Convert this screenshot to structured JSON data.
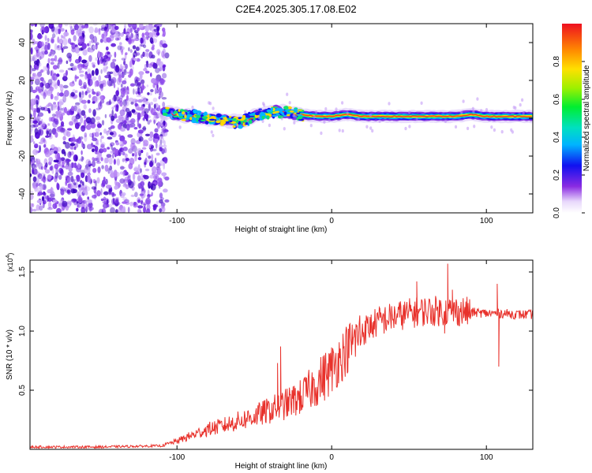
{
  "title": "C2E4.2025.305.17.08.E02",
  "colors": {
    "snr_line": "#e8312b",
    "axis": "#000000",
    "dots": "#7a33e6",
    "background": "#ffffff"
  },
  "chart_data": [
    {
      "type": "heatmap",
      "name": "spectrogram",
      "xlabel": "Height of straight line (km)",
      "ylabel": "Frequency (Hz)",
      "xlim": [
        -195,
        130
      ],
      "ylim": [
        -50,
        50
      ],
      "xticks": [
        -100,
        0,
        100
      ],
      "yticks": [
        -40,
        -20,
        0,
        20,
        40
      ],
      "noise_region_x": [
        -195,
        -108
      ],
      "signal_track": {
        "x": [
          -108,
          -100,
          -90,
          -80,
          -70,
          -60,
          -50,
          -40,
          -35,
          -30,
          -20,
          -10,
          0,
          10,
          20,
          40,
          60,
          80,
          90,
          100,
          110,
          130
        ],
        "freq": [
          3,
          2,
          1,
          0,
          -1,
          -2,
          1,
          3,
          4,
          3,
          2,
          1,
          1,
          2,
          1,
          1,
          1,
          1,
          2,
          1,
          1,
          1
        ]
      },
      "colorbar": {
        "label": "Normalized spectral amplitude",
        "range": [
          0,
          1
        ],
        "ticks": [
          "0.0",
          "0.2",
          "0.4",
          "0.6",
          "0.8"
        ],
        "tick_values": [
          0,
          0.2,
          0.4,
          0.6,
          0.8
        ]
      }
    },
    {
      "type": "line",
      "name": "snr",
      "xlabel": "Height of straight line (km)",
      "ylabel": "SNR (10 * v/v)",
      "scale_label_base": "(x10",
      "scale_label_exp": "4",
      "scale_label_end": ")",
      "xlim": [
        -195,
        130
      ],
      "ylim": [
        0,
        1.6
      ],
      "xticks": [
        -100,
        0,
        100
      ],
      "yticks": [
        0.5,
        1.0,
        1.5
      ],
      "ytick_labels": [
        "0.5",
        "1.0",
        "1.5"
      ],
      "x": [
        -195,
        -150,
        -110,
        -100,
        -90,
        -80,
        -70,
        -60,
        -50,
        -40,
        -30,
        -20,
        -10,
        0,
        10,
        20,
        30,
        40,
        50,
        60,
        70,
        80,
        90,
        100,
        110,
        120,
        130
      ],
      "y": [
        0.02,
        0.02,
        0.03,
        0.07,
        0.12,
        0.17,
        0.2,
        0.24,
        0.28,
        0.33,
        0.38,
        0.44,
        0.55,
        0.68,
        0.85,
        1.0,
        1.08,
        1.12,
        1.15,
        1.17,
        1.17,
        1.17,
        1.16,
        1.15,
        1.15,
        1.14,
        1.14
      ],
      "spikes": [
        {
          "x": -33,
          "y": 0.87
        },
        {
          "x": -35,
          "y": 0.73
        },
        {
          "x": 55,
          "y": 1.42
        },
        {
          "x": 75,
          "y": 1.57
        },
        {
          "x": 78,
          "y": 1.35
        },
        {
          "x": 107,
          "y": 1.4
        },
        {
          "x": 108,
          "y": 0.7
        },
        {
          "x": 73,
          "y": 0.98
        }
      ]
    }
  ]
}
